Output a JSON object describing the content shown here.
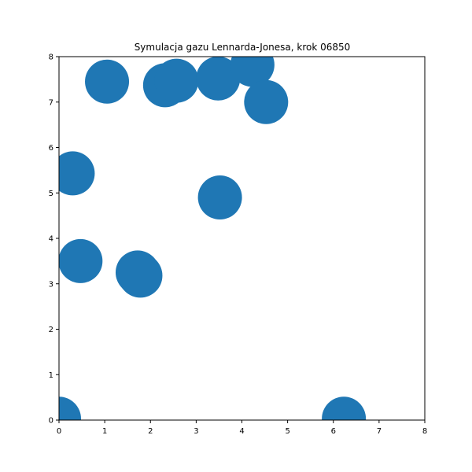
{
  "chart_data": {
    "type": "scatter",
    "title": "Symulacja gazu Lennarda-Jonesa, krok 06850",
    "xlabel": "",
    "ylabel": "",
    "xlim": [
      0,
      8
    ],
    "ylim": [
      0,
      8
    ],
    "xticks": [
      "0",
      "1",
      "2",
      "3",
      "4",
      "5",
      "6",
      "7",
      "8"
    ],
    "yticks": [
      "0",
      "1",
      "2",
      "3",
      "4",
      "5",
      "6",
      "7",
      "8"
    ],
    "grid": false,
    "marker_color": "#1f77b4",
    "series": [
      {
        "points": [
          {
            "x": 1.05,
            "y": 7.45
          },
          {
            "x": 2.32,
            "y": 7.37
          },
          {
            "x": 2.57,
            "y": 7.47
          },
          {
            "x": 3.48,
            "y": 7.52
          },
          {
            "x": 4.23,
            "y": 7.82
          },
          {
            "x": 4.53,
            "y": 7.0
          },
          {
            "x": 0.3,
            "y": 5.43
          },
          {
            "x": 3.52,
            "y": 4.9
          },
          {
            "x": 0.47,
            "y": 3.5
          },
          {
            "x": 1.72,
            "y": 3.25
          },
          {
            "x": 1.78,
            "y": 3.18
          },
          {
            "x": 0.0,
            "y": 0.03
          },
          {
            "x": 6.23,
            "y": 0.03
          }
        ]
      }
    ]
  }
}
